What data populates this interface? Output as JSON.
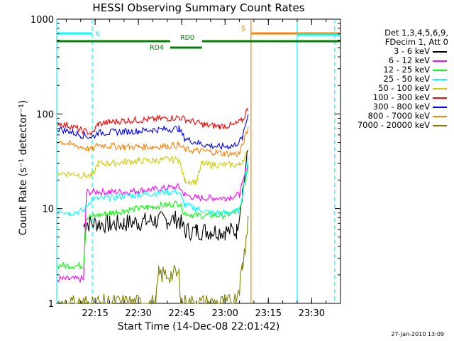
{
  "title": "HESSI Observing Summary Count Rates",
  "xlabel": "Start Time (14-Dec-08 22:01:42)",
  "ylabel": "Count Rate (s⁻¹ detector⁻¹)",
  "timestamp": "27-Jan-2010 13:09",
  "legend": {
    "header_line1": "Det 1,3,4,5,6,9,",
    "header_line2": "FDecim 1, Att 0",
    "items": [
      {
        "label": "3 - 6 keV",
        "color": "#000000"
      },
      {
        "label": "6 - 12 keV",
        "color": "#ff00ff"
      },
      {
        "label": "12 - 25 keV",
        "color": "#00ff00"
      },
      {
        "label": "25 - 50 keV",
        "color": "#00ffff"
      },
      {
        "label": "50 - 100 keV",
        "color": "#cccc00"
      },
      {
        "label": "100 - 300 keV",
        "color": "#ff0000"
      },
      {
        "label": "300 - 800 keV",
        "color": "#0000ff"
      },
      {
        "label": "800 - 7000 keV",
        "color": "#ff8000"
      },
      {
        "label": "7000 - 20000 keV",
        "color": "#808000"
      }
    ]
  },
  "chart_data": {
    "type": "line",
    "title": "HESSI Observing Summary Count Rates",
    "xlabel": "Start Time (14-Dec-08 22:01:42)",
    "ylabel": "Count Rate (s⁻¹ detector⁻¹)",
    "y_scale": "log",
    "ylim": [
      1,
      1000
    ],
    "xlim": [
      "22:01:42",
      "23:40"
    ],
    "x_ticks": [
      "22:15",
      "22:30",
      "22:45",
      "23:00",
      "23:15",
      "23:30"
    ],
    "y_ticks": [
      "1",
      "10",
      "100",
      "1000"
    ],
    "grid": false,
    "legend_position": "right",
    "series": [
      {
        "name": "3 - 6 keV",
        "color": "#000000",
        "x": [
          "22:11",
          "22:12",
          "22:16",
          "22:20",
          "22:25",
          "22:30",
          "22:35",
          "22:40",
          "22:44",
          "22:46",
          "22:50",
          "22:55",
          "23:00",
          "23:04",
          "23:06",
          "23:08"
        ],
        "y": [
          6.5,
          7,
          7,
          6.8,
          7,
          7.2,
          7.5,
          7.5,
          7.8,
          5.8,
          5.8,
          5.8,
          5.8,
          5.8,
          15,
          40
        ]
      },
      {
        "name": "6 - 12 keV",
        "color": "#ff00ff",
        "x": [
          "22:02",
          "22:11",
          "22:12",
          "22:16",
          "22:20",
          "22:25",
          "22:30",
          "22:35",
          "22:40",
          "22:44",
          "22:46",
          "22:50",
          "22:55",
          "23:00",
          "23:05",
          "23:08"
        ],
        "y": [
          1.8,
          1.8,
          15,
          15,
          15,
          15,
          15.5,
          16,
          16.5,
          17,
          14,
          13,
          13,
          13,
          14,
          30
        ]
      },
      {
        "name": "12 - 25 keV",
        "color": "#00ff00",
        "x": [
          "22:02",
          "22:11",
          "22:12",
          "22:16",
          "22:20",
          "22:25",
          "22:30",
          "22:35",
          "22:40",
          "22:44",
          "22:46",
          "22:50",
          "22:55",
          "23:00",
          "23:05",
          "23:08"
        ],
        "y": [
          2.5,
          2.5,
          8,
          8.5,
          9,
          9.5,
          10,
          10.5,
          11,
          11.5,
          9,
          8.5,
          8.5,
          8.5,
          9.5,
          28
        ]
      },
      {
        "name": "25 - 50 keV",
        "color": "#00ffff",
        "x": [
          "22:02",
          "22:06",
          "22:11",
          "22:14",
          "22:16",
          "22:20",
          "22:25",
          "22:30",
          "22:35",
          "22:40",
          "22:44",
          "22:46",
          "22:50",
          "22:55",
          "23:00",
          "23:05",
          "23:08"
        ],
        "y": [
          10,
          9,
          9.5,
          13,
          12.5,
          13,
          13.5,
          14,
          14.5,
          15,
          15,
          11,
          10,
          9,
          9,
          9.5,
          33
        ]
      },
      {
        "name": "50 - 100 keV",
        "color": "#cccc00",
        "x": [
          "22:02",
          "22:08",
          "22:14",
          "22:16",
          "22:20",
          "22:25",
          "22:30",
          "22:35",
          "22:40",
          "22:44",
          "22:46",
          "22:50",
          "22:52",
          "22:55",
          "23:00",
          "23:05",
          "23:08"
        ],
        "y": [
          24,
          23,
          22,
          30,
          30,
          31,
          32,
          32,
          33,
          33,
          20,
          19,
          30,
          29,
          29,
          29,
          40
        ]
      },
      {
        "name": "100 - 300 keV",
        "color": "#ff0000",
        "x": [
          "22:02",
          "22:06",
          "22:10",
          "22:14",
          "22:16",
          "22:20",
          "22:25",
          "22:30",
          "22:35",
          "22:40",
          "22:44",
          "22:52",
          "22:53",
          "22:58",
          "23:03",
          "23:06",
          "23:08"
        ],
        "y": [
          80,
          75,
          68,
          62,
          78,
          82,
          85,
          86,
          88,
          90,
          92,
          78,
          76,
          74,
          76,
          85,
          115
        ]
      },
      {
        "name": "300 - 800 keV",
        "color": "#0000ff",
        "x": [
          "22:02",
          "22:06",
          "22:10",
          "22:14",
          "22:16",
          "22:20",
          "22:25",
          "22:30",
          "22:35",
          "22:40",
          "22:44",
          "22:46",
          "22:50",
          "22:53",
          "22:58",
          "23:03",
          "23:06",
          "23:08"
        ],
        "y": [
          70,
          65,
          60,
          57,
          63,
          64,
          65,
          66,
          68,
          69,
          70,
          55,
          50,
          47,
          45,
          46,
          55,
          100
        ]
      },
      {
        "name": "800 - 7000 keV",
        "color": "#ff8000",
        "x": [
          "22:02",
          "22:06",
          "22:10",
          "22:14",
          "22:16",
          "22:20",
          "22:25",
          "22:30",
          "22:35",
          "22:40",
          "22:44",
          "22:46",
          "22:50",
          "22:55",
          "23:00",
          "23:05",
          "23:08"
        ],
        "y": [
          52,
          48,
          45,
          42,
          47,
          46,
          45,
          45,
          45,
          46,
          47,
          42,
          41,
          40,
          38,
          38,
          70
        ]
      },
      {
        "name": "7000 - 20000 keV",
        "color": "#808000",
        "x": [
          "22:02",
          "22:11",
          "22:36",
          "22:37",
          "22:44",
          "22:45",
          "23:03",
          "23:05",
          "23:06",
          "23:07",
          "23:08"
        ],
        "y": [
          1,
          1,
          1,
          2,
          2,
          1,
          1,
          1.5,
          2.5,
          4,
          8
        ]
      }
    ],
    "annotations": {
      "vertical_lines": [
        {
          "time": "22:01:42",
          "color": "#00ffff",
          "style": "solid"
        },
        {
          "time": "22:14",
          "color": "#00ffff",
          "style": "dashed"
        },
        {
          "time": "23:09",
          "color": "#ff8000",
          "style": "solid"
        },
        {
          "time": "23:25",
          "color": "#00ffff",
          "style": "solid"
        },
        {
          "time": "23:38",
          "color": "#00ffff",
          "style": "dashed"
        }
      ],
      "bars": [
        {
          "label": "N",
          "color": "#00ffff",
          "from": "22:01:42",
          "to": "22:14",
          "level": "upper"
        },
        {
          "label": "S",
          "color": "#ff8000",
          "from": "23:09",
          "to": "23:40",
          "level": "upper"
        },
        {
          "label": "",
          "color": "#00ffff",
          "from": "23:25",
          "to": "23:40",
          "level": "middle"
        },
        {
          "label": "RD0",
          "color": "#008000",
          "from": "22:01:42",
          "to": "23:40",
          "level": "lower"
        },
        {
          "label": "RD4",
          "color": "#008000",
          "from": "22:41",
          "to": "22:52",
          "level": "lowest"
        }
      ]
    }
  }
}
